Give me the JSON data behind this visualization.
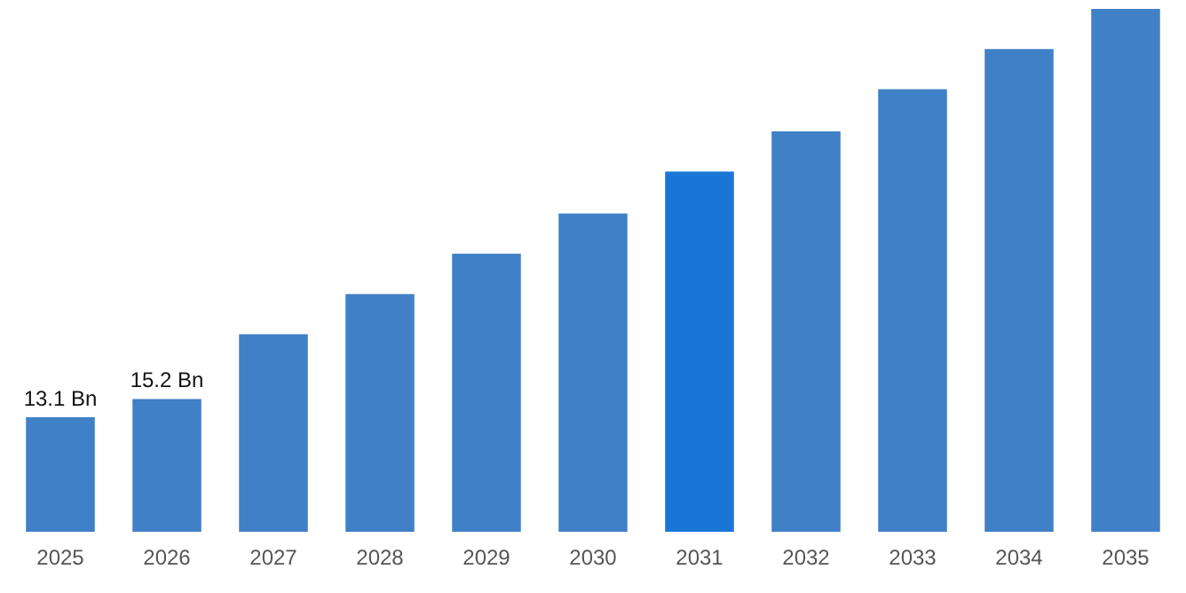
{
  "chart_data": {
    "type": "bar",
    "categories": [
      "2025",
      "2026",
      "2027",
      "2028",
      "2029",
      "2030",
      "2031",
      "2032",
      "2033",
      "2034",
      "2035"
    ],
    "values": [
      13.1,
      15.2,
      22.6,
      27.2,
      31.8,
      36.4,
      41.2,
      45.8,
      50.6,
      55.2,
      59.8
    ],
    "colors": [
      "#4080c6",
      "#4080c6",
      "#4080c6",
      "#4080c6",
      "#4080c6",
      "#4080c6",
      "#1a76d6",
      "#4080c6",
      "#4080c6",
      "#4080c6",
      "#4080c6"
    ],
    "value_labels": [
      "13.1 Bn",
      "15.2 Bn",
      null,
      null,
      null,
      null,
      null,
      null,
      null,
      null,
      null
    ],
    "ylim": [
      0,
      60
    ],
    "tick_labels": "x",
    "grid": false,
    "legend": false
  }
}
